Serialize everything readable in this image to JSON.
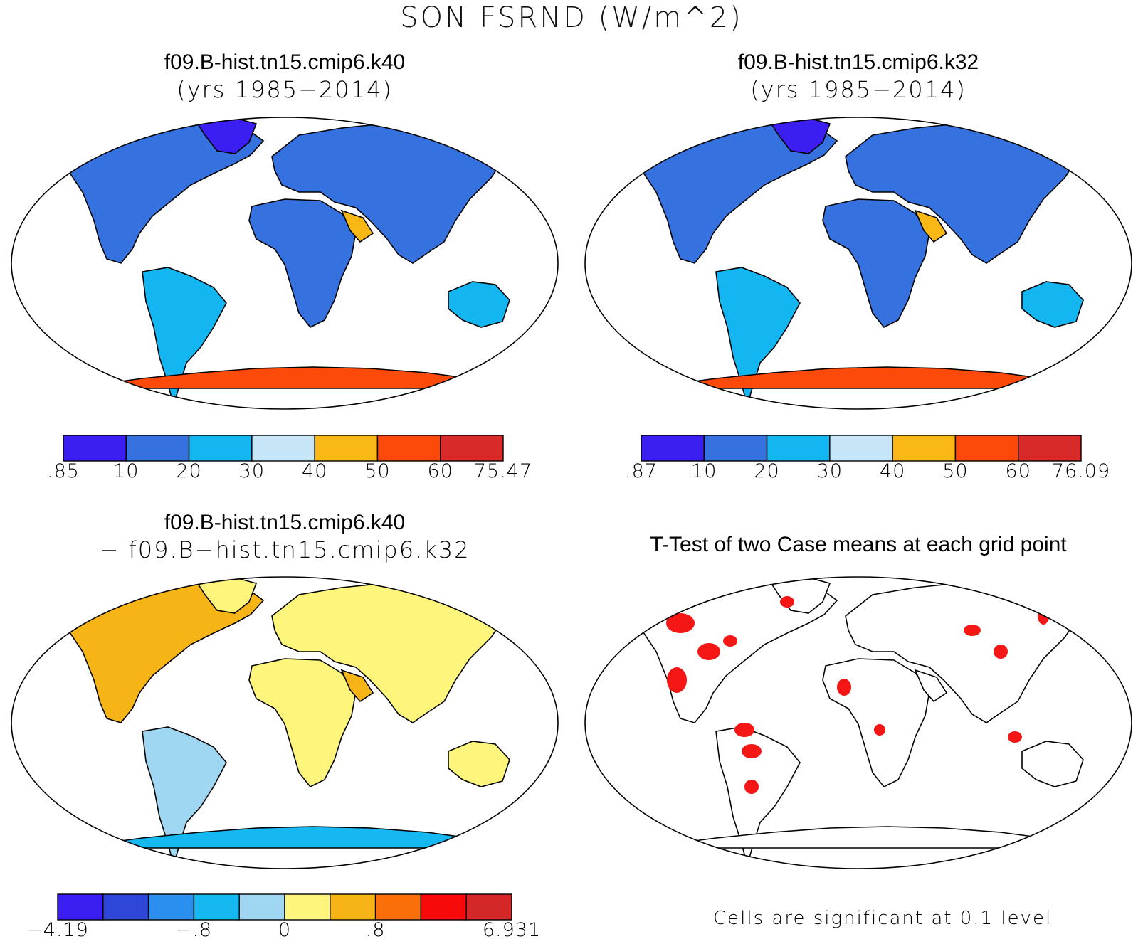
{
  "figure": {
    "title": "SON FSRND (W/m^2)"
  },
  "panels": {
    "a": {
      "case": "f09.B-hist.tn15.cmip6.k40",
      "years": "(yrs 1985−2014)"
    },
    "b": {
      "case": "f09.B-hist.tn15.cmip6.k32",
      "years": "(yrs 1985−2014)"
    },
    "c": {
      "case": "f09.B-hist.tn15.cmip6.k40",
      "minus_case": "− f09.B−hist.tn15.cmip6.k32"
    },
    "d": {
      "title": "T-Test of two Case means at each grid point",
      "note": "Cells are significant at 0.1 level"
    }
  },
  "colorbars": {
    "a": {
      "labels": [
        ".85",
        "10",
        "20",
        "30",
        "40",
        "50",
        "60",
        "75.47"
      ],
      "colors": [
        "#3a1ef2",
        "#3671e0",
        "#14b6f2",
        "#c6e6f7",
        "#f9b815",
        "#fc4a0a",
        "#d92a2a"
      ]
    },
    "b": {
      "labels": [
        ".87",
        "10",
        "20",
        "30",
        "40",
        "50",
        "60",
        "76.09"
      ],
      "colors": [
        "#3a1ef2",
        "#3671e0",
        "#14b6f2",
        "#c6e6f7",
        "#f9b815",
        "#fc4a0a",
        "#d92a2a"
      ]
    },
    "c": {
      "labels": [
        "−4.19",
        "−.8",
        "0",
        ".8",
        "6.931"
      ],
      "colors": [
        "#3a1ef2",
        "#2f47d8",
        "#2b8ff0",
        "#15b8f0",
        "#9fd6f2",
        "#fdf57c",
        "#f7b416",
        "#fb6f0a",
        "#f80a0a",
        "#d42828"
      ]
    }
  },
  "colors": {
    "land_outline": "#000000",
    "significance": "#f51616"
  }
}
